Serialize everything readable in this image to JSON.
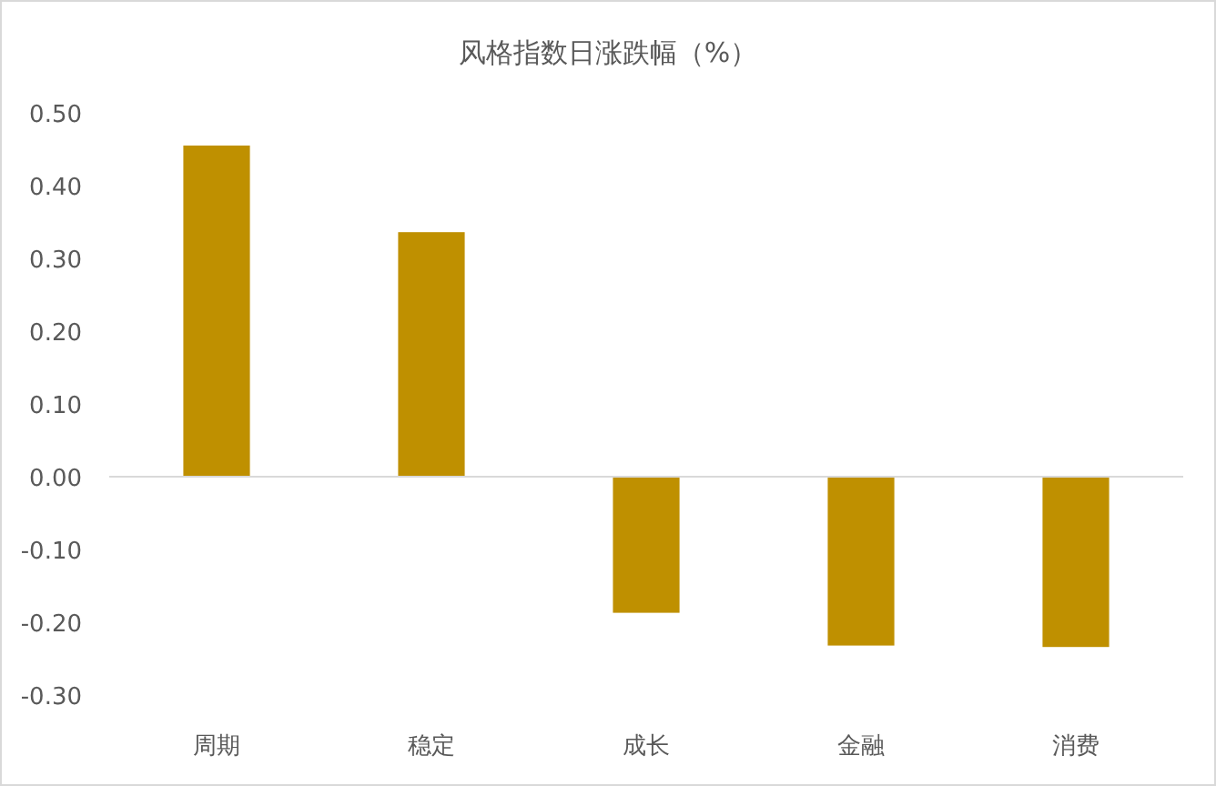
{
  "chart_data": {
    "type": "bar",
    "title": "风格指数日涨跌幅（%）",
    "categories": [
      "周期",
      "稳定",
      "成长",
      "金融",
      "消费"
    ],
    "values": [
      0.455,
      0.336,
      -0.187,
      -0.232,
      -0.234
    ],
    "color": "#bf9000",
    "ylim": [
      -0.3,
      0.5
    ],
    "yticks": [
      {
        "value": -0.3,
        "label": "-0.30"
      },
      {
        "value": -0.2,
        "label": "-0.20"
      },
      {
        "value": -0.1,
        "label": "-0.10"
      },
      {
        "value": 0,
        "label": "0.00"
      },
      {
        "value": 0.1,
        "label": "0.10"
      },
      {
        "value": 0.2,
        "label": "0.20"
      },
      {
        "value": 0.3,
        "label": "0.30"
      },
      {
        "value": 0.4,
        "label": "0.40"
      },
      {
        "value": 0.5,
        "label": "0.50"
      }
    ]
  }
}
